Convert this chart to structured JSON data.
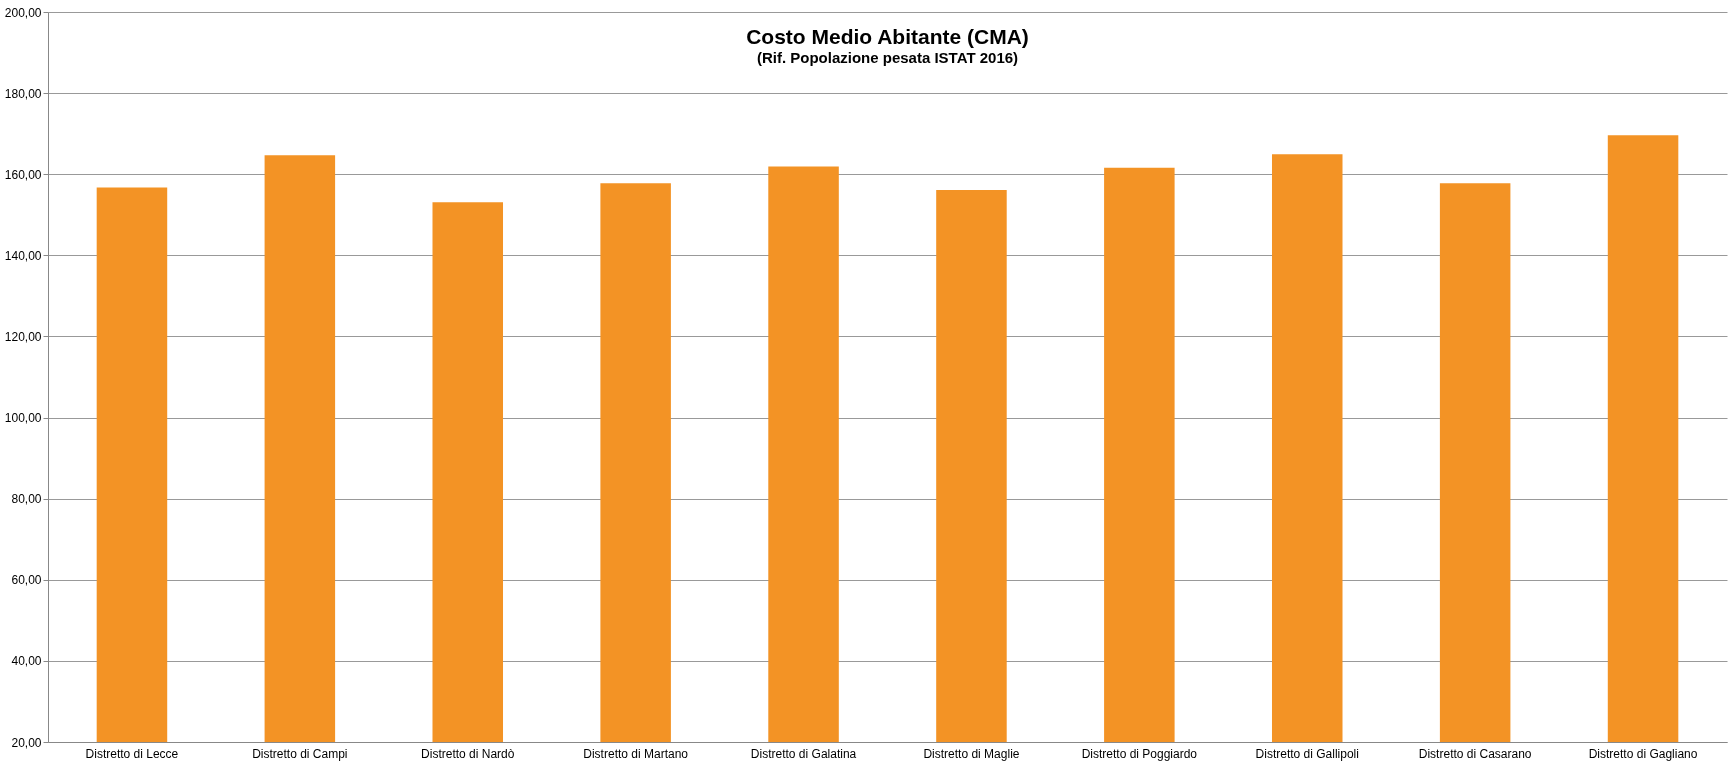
{
  "chart_data": {
    "type": "bar",
    "title": "Costo Medio Abitante (CMA)",
    "subtitle": "(Rif. Popolazione pesata ISTAT 2016)",
    "categories": [
      "Distretto di Lecce",
      "Distretto di Campi",
      "Distretto di Nardò",
      "Distretto di Martano",
      "Distretto di Galatina",
      "Distretto di Maglie",
      "Distretto di Poggiardo",
      "Distretto di Gallipoli",
      "Distretto di Casarano",
      "Distretto di Gagliano"
    ],
    "values": [
      156.7,
      164.7,
      153.1,
      157.8,
      161.9,
      156.1,
      161.6,
      164.9,
      157.8,
      169.6
    ],
    "color": "#f39325",
    "ylim": [
      20,
      200
    ],
    "yticks": [
      {
        "value": 20,
        "label": "20,00"
      },
      {
        "value": 40,
        "label": "40,00"
      },
      {
        "value": 60,
        "label": "60,00"
      },
      {
        "value": 80,
        "label": "80,00"
      },
      {
        "value": 100,
        "label": "100,00"
      },
      {
        "value": 120,
        "label": "120,00"
      },
      {
        "value": 140,
        "label": "140,00"
      },
      {
        "value": 160,
        "label": "160,00"
      },
      {
        "value": 180,
        "label": "180,00"
      },
      {
        "value": 200,
        "label": "200,00"
      }
    ],
    "grid": "y"
  }
}
